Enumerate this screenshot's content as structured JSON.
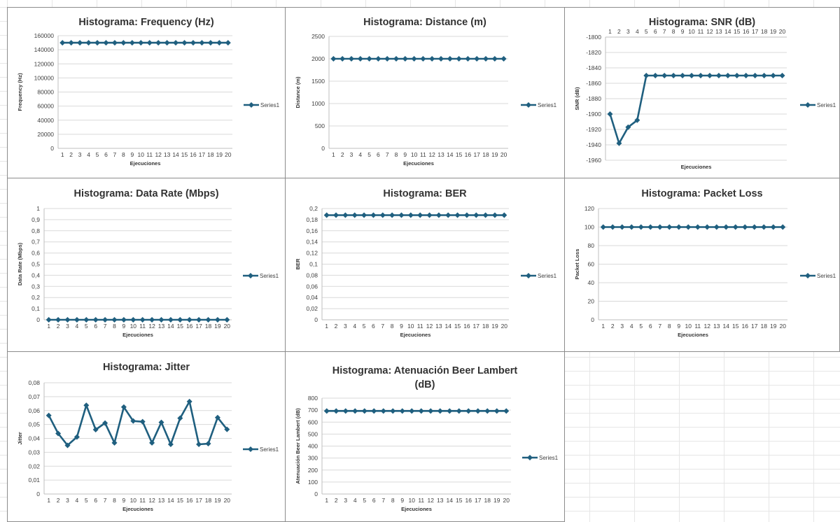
{
  "series_color": "#1f5f7f",
  "chart_data": [
    {
      "type": "line",
      "title": "Histograma: Frequency (Hz)",
      "xlabel": "Ejecuciones",
      "ylabel": "Frequency (Hz)",
      "x": [
        1,
        2,
        3,
        4,
        5,
        6,
        7,
        8,
        9,
        10,
        11,
        12,
        13,
        14,
        15,
        16,
        17,
        18,
        19,
        20
      ],
      "ylim": [
        0,
        160000
      ],
      "yticks": [
        0,
        20000,
        40000,
        60000,
        80000,
        100000,
        120000,
        140000,
        160000
      ],
      "ytick_labels": [
        "0",
        "20000",
        "40000",
        "60000",
        "80000",
        "100000",
        "120000",
        "140000",
        "160000"
      ],
      "xaxis_position": "bottom",
      "legend": "right",
      "grid": true,
      "series": [
        {
          "name": "Series1",
          "values": [
            150000,
            150000,
            150000,
            150000,
            150000,
            150000,
            150000,
            150000,
            150000,
            150000,
            150000,
            150000,
            150000,
            150000,
            150000,
            150000,
            150000,
            150000,
            150000,
            150000
          ]
        }
      ]
    },
    {
      "type": "line",
      "title": "Histograma: Distance (m)",
      "xlabel": "Ejecuciones",
      "ylabel": "Distance (m)",
      "x": [
        1,
        2,
        3,
        4,
        5,
        6,
        7,
        8,
        9,
        10,
        11,
        12,
        13,
        14,
        15,
        16,
        17,
        18,
        19,
        20
      ],
      "ylim": [
        0,
        2500
      ],
      "yticks": [
        0,
        500,
        1000,
        1500,
        2000,
        2500
      ],
      "ytick_labels": [
        "0",
        "500",
        "1000",
        "1500",
        "2000",
        "2500"
      ],
      "xaxis_position": "bottom",
      "legend": "right",
      "grid": true,
      "series": [
        {
          "name": "Series1",
          "values": [
            2000,
            2000,
            2000,
            2000,
            2000,
            2000,
            2000,
            2000,
            2000,
            2000,
            2000,
            2000,
            2000,
            2000,
            2000,
            2000,
            2000,
            2000,
            2000,
            2000
          ]
        }
      ]
    },
    {
      "type": "line",
      "title": "Histograma: SNR (dB)",
      "xlabel": "Ejecuciones",
      "ylabel": "SNR (dB)",
      "x": [
        1,
        2,
        3,
        4,
        5,
        6,
        7,
        8,
        9,
        10,
        11,
        12,
        13,
        14,
        15,
        16,
        17,
        18,
        19,
        20
      ],
      "ylim": [
        -1960,
        -1800
      ],
      "yticks": [
        -1960,
        -1940,
        -1920,
        -1900,
        -1880,
        -1860,
        -1840,
        -1820,
        -1800
      ],
      "ytick_labels": [
        "-1960",
        "-1940",
        "-1920",
        "-1900",
        "-1880",
        "-1860",
        "-1840",
        "-1820",
        "-1800"
      ],
      "xaxis_position": "top",
      "legend": "right",
      "grid": true,
      "series": [
        {
          "name": "Series1",
          "values": [
            -1900,
            -1938,
            -1917,
            -1908,
            -1850,
            -1850,
            -1850,
            -1850,
            -1850,
            -1850,
            -1850,
            -1850,
            -1850,
            -1850,
            -1850,
            -1850,
            -1850,
            -1850,
            -1850,
            -1850
          ]
        }
      ]
    },
    {
      "type": "line",
      "title": "Histograma: Data Rate (Mbps)",
      "xlabel": "Ejecuciones",
      "ylabel": "Data Rate (Mbps)",
      "x": [
        1,
        2,
        3,
        4,
        5,
        6,
        7,
        8,
        9,
        10,
        11,
        12,
        13,
        14,
        15,
        16,
        17,
        18,
        19,
        20
      ],
      "ylim": [
        0,
        1
      ],
      "yticks": [
        0,
        0.1,
        0.2,
        0.3,
        0.4,
        0.5,
        0.6,
        0.7,
        0.8,
        0.9,
        1
      ],
      "ytick_labels": [
        "0",
        "0,1",
        "0,2",
        "0,3",
        "0,4",
        "0,5",
        "0,6",
        "0,7",
        "0,8",
        "0,9",
        "1"
      ],
      "xaxis_position": "bottom",
      "legend": "right",
      "grid": true,
      "series": [
        {
          "name": "Series1",
          "values": [
            0,
            0,
            0,
            0,
            0,
            0,
            0,
            0,
            0,
            0,
            0,
            0,
            0,
            0,
            0,
            0,
            0,
            0,
            0,
            0
          ]
        }
      ]
    },
    {
      "type": "line",
      "title": "Histograma: BER",
      "xlabel": "Ejecuciones",
      "ylabel": "BER",
      "x": [
        1,
        2,
        3,
        4,
        5,
        6,
        7,
        8,
        9,
        10,
        11,
        12,
        13,
        14,
        15,
        16,
        17,
        18,
        19,
        20
      ],
      "ylim": [
        0,
        0.2
      ],
      "yticks": [
        0,
        0.02,
        0.04,
        0.06,
        0.08,
        0.1,
        0.12,
        0.14,
        0.16,
        0.18,
        0.2
      ],
      "ytick_labels": [
        "0",
        "0,02",
        "0,04",
        "0,06",
        "0,08",
        "0,1",
        "0,12",
        "0,14",
        "0,16",
        "0,18",
        "0,2"
      ],
      "xaxis_position": "bottom",
      "legend": "right",
      "grid": true,
      "series": [
        {
          "name": "Series1",
          "values": [
            0.188,
            0.188,
            0.188,
            0.188,
            0.188,
            0.188,
            0.188,
            0.188,
            0.188,
            0.188,
            0.188,
            0.188,
            0.188,
            0.188,
            0.188,
            0.188,
            0.188,
            0.188,
            0.188,
            0.188
          ]
        }
      ]
    },
    {
      "type": "line",
      "title": "Histograma: Packet Loss",
      "xlabel": "Ejecuciones",
      "ylabel": "Packet Loss",
      "x": [
        1,
        2,
        3,
        4,
        5,
        6,
        7,
        8,
        9,
        10,
        11,
        12,
        13,
        14,
        15,
        16,
        17,
        18,
        19,
        20
      ],
      "ylim": [
        0,
        120
      ],
      "yticks": [
        0,
        20,
        40,
        60,
        80,
        100,
        120
      ],
      "ytick_labels": [
        "0",
        "20",
        "40",
        "60",
        "80",
        "100",
        "120"
      ],
      "xaxis_position": "bottom",
      "legend": "right",
      "grid": true,
      "series": [
        {
          "name": "Series1",
          "values": [
            100,
            100,
            100,
            100,
            100,
            100,
            100,
            100,
            100,
            100,
            100,
            100,
            100,
            100,
            100,
            100,
            100,
            100,
            100,
            100
          ]
        }
      ]
    },
    {
      "type": "line",
      "title": "Histograma: Jitter",
      "xlabel": "Ejecuciones",
      "ylabel": "Jitter",
      "x": [
        1,
        2,
        3,
        4,
        5,
        6,
        7,
        8,
        9,
        10,
        11,
        12,
        13,
        14,
        15,
        16,
        17,
        18,
        19,
        20
      ],
      "ylim": [
        0,
        0.08
      ],
      "yticks": [
        0,
        0.01,
        0.02,
        0.03,
        0.04,
        0.05,
        0.06,
        0.07,
        0.08
      ],
      "ytick_labels": [
        "0",
        "0,01",
        "0,02",
        "0,03",
        "0,04",
        "0,05",
        "0,06",
        "0,07",
        "0,08"
      ],
      "xaxis_position": "bottom",
      "legend": "right",
      "grid": true,
      "series": [
        {
          "name": "Series1",
          "values": [
            0.0565,
            0.0435,
            0.035,
            0.041,
            0.0638,
            0.0463,
            0.051,
            0.0368,
            0.0625,
            0.0525,
            0.052,
            0.0368,
            0.0515,
            0.0357,
            0.0545,
            0.0665,
            0.0357,
            0.0362,
            0.055,
            0.0465
          ]
        }
      ]
    },
    {
      "type": "line",
      "title": "Histograma: Atenuación Beer Lambert (dB)",
      "title_lines": [
        "Histograma: Atenuación Beer Lambert",
        "(dB)"
      ],
      "xlabel": "Ejecuciones",
      "ylabel": "Atenuación Beer Lambert (dB)",
      "x": [
        1,
        2,
        3,
        4,
        5,
        6,
        7,
        8,
        9,
        10,
        11,
        12,
        13,
        14,
        15,
        16,
        17,
        18,
        19,
        20
      ],
      "ylim": [
        0,
        800
      ],
      "yticks": [
        0,
        100,
        200,
        300,
        400,
        500,
        600,
        700,
        800
      ],
      "ytick_labels": [
        "0",
        "100",
        "200",
        "300",
        "400",
        "500",
        "600",
        "700",
        "800"
      ],
      "xaxis_position": "bottom",
      "legend": "right",
      "grid": true,
      "series": [
        {
          "name": "Series1",
          "values": [
            693,
            693,
            693,
            693,
            693,
            693,
            693,
            693,
            693,
            693,
            693,
            693,
            693,
            693,
            693,
            693,
            693,
            693,
            693,
            693
          ]
        }
      ]
    }
  ]
}
